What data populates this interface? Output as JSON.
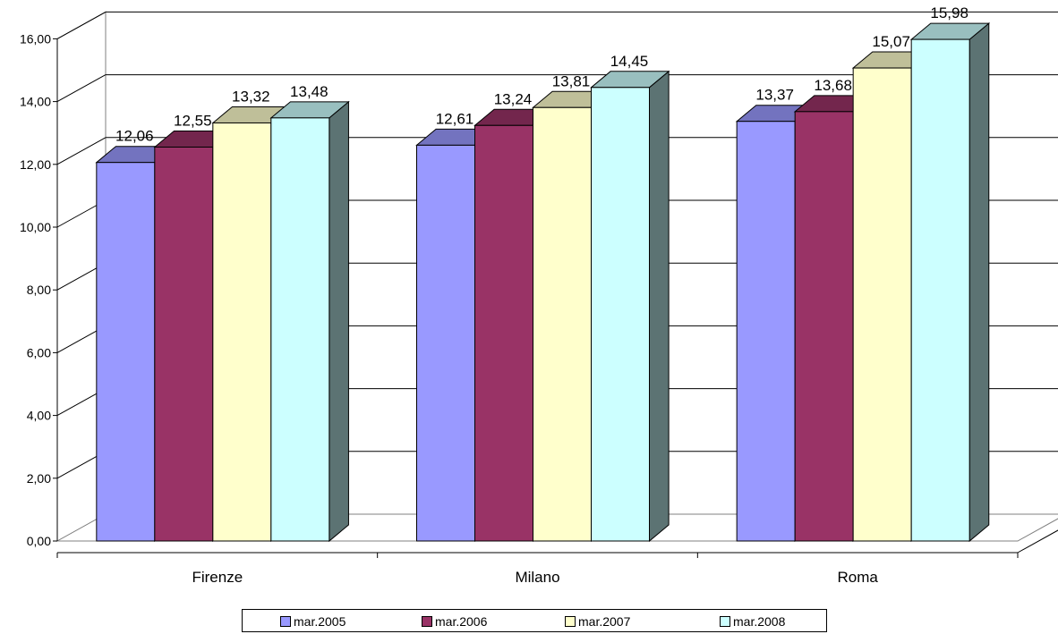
{
  "chart_data": {
    "type": "bar",
    "categories": [
      "Firenze",
      "Milano",
      "Roma"
    ],
    "series": [
      {
        "name": "mar.2005",
        "values": [
          12.06,
          12.61,
          13.37
        ],
        "labels": [
          "12,06",
          "12,61",
          "13,37"
        ],
        "color": "#9999FF"
      },
      {
        "name": "mar.2006",
        "values": [
          12.55,
          13.24,
          13.68
        ],
        "labels": [
          "12,55",
          "13,24",
          "13,68"
        ],
        "color": "#993366"
      },
      {
        "name": "mar.2007",
        "values": [
          13.32,
          13.81,
          15.07
        ],
        "labels": [
          "13,32",
          "13,81",
          "15,07"
        ],
        "color": "#FFFFCC"
      },
      {
        "name": "mar.2008",
        "values": [
          13.48,
          14.45,
          15.98
        ],
        "labels": [
          "13,48",
          "14,45",
          "15,98"
        ],
        "color": "#CCFFFF"
      }
    ],
    "y_ticks": [
      "0,00",
      "2,00",
      "4,00",
      "6,00",
      "8,00",
      "10,00",
      "12,00",
      "14,00",
      "16,00"
    ],
    "ylim": [
      0,
      16
    ],
    "grid": true,
    "style": "3d-clustered-column",
    "legend_position": "bottom"
  }
}
